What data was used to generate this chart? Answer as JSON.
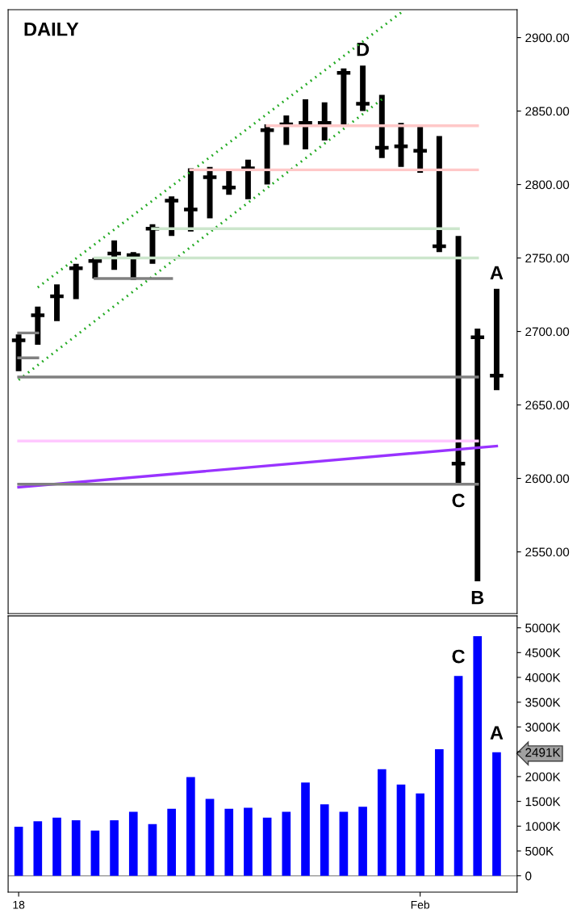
{
  "chart_data": [
    {
      "type": "candlestick",
      "categories": [
        null,
        null,
        null,
        null,
        null,
        null,
        null,
        null,
        null,
        null,
        null,
        null,
        null,
        null,
        null,
        null,
        null,
        null,
        null,
        null,
        null,
        null,
        null,
        null,
        null,
        null
      ],
      "color": "#000000",
      "ohlc": [
        [
          2694,
          2698,
          2673,
          2694
        ],
        [
          2711,
          2717,
          2691,
          2711
        ],
        [
          2724,
          2732,
          2707,
          2724
        ],
        [
          2743,
          2746,
          2722,
          2743
        ],
        [
          2748,
          2750,
          2736,
          2748
        ],
        [
          2753,
          2762,
          2742,
          2753
        ],
        [
          2752,
          2754,
          2735,
          2752
        ],
        [
          2770,
          2773,
          2746,
          2770
        ],
        [
          2789,
          2792,
          2765,
          2789
        ],
        [
          2783,
          2811,
          2768,
          2783
        ],
        [
          2805,
          2812,
          2777,
          2805
        ],
        [
          2798,
          2810,
          2793,
          2798
        ],
        [
          2811,
          2817,
          2790,
          2811
        ],
        [
          2837,
          2841,
          2800,
          2837
        ],
        [
          2841,
          2847,
          2827,
          2841
        ],
        [
          2842,
          2858,
          2824,
          2842
        ],
        [
          2842,
          2856,
          2830,
          2842
        ],
        [
          2876,
          2879,
          2841,
          2876
        ],
        [
          2855,
          2881,
          2850,
          2855
        ],
        [
          2825,
          2861,
          2818,
          2825
        ],
        [
          2826,
          2842,
          2812,
          2826
        ],
        [
          2823,
          2840,
          2808,
          2823
        ],
        [
          2758,
          2833,
          2754,
          2758
        ],
        [
          2610,
          2765,
          2596,
          2610
        ],
        [
          2696,
          2702,
          2530,
          2696
        ],
        [
          2670,
          2729,
          2660,
          2670
        ]
      ],
      "value_labels": [
        null,
        null,
        null,
        null,
        null,
        null,
        null,
        null,
        null,
        null,
        null,
        null,
        null,
        null,
        null,
        null,
        null,
        null,
        "D",
        null,
        null,
        null,
        null,
        "C",
        "B",
        "A"
      ],
      "series": [
        {
          "type": "line",
          "color": "#9933ff",
          "values": [
            2594,
            null,
            null,
            null,
            null,
            null,
            null,
            null,
            null,
            null,
            null,
            null,
            null,
            null,
            null,
            null,
            null,
            null,
            null,
            null,
            null,
            null,
            null,
            null,
            null,
            2622
          ]
        },
        {
          "type": "line",
          "color": "#22aa22",
          "line_style": "dotted",
          "values": [
            null,
            2730,
            null,
            null,
            null,
            null,
            null,
            null,
            null,
            null,
            null,
            null,
            null,
            null,
            null,
            null,
            null,
            null,
            null,
            null,
            2917,
            null,
            null,
            null,
            null,
            null
          ]
        },
        {
          "type": "line",
          "color": "#22aa22",
          "line_style": "dotted",
          "values": [
            2667,
            null,
            null,
            null,
            null,
            null,
            null,
            null,
            null,
            null,
            null,
            null,
            null,
            null,
            null,
            null,
            null,
            null,
            null,
            2858,
            null,
            null,
            null,
            null,
            null,
            null
          ]
        },
        {
          "type": "line",
          "color": "#808080",
          "values": [
            2699,
            2699,
            null,
            null,
            null,
            null,
            null,
            null,
            null,
            null,
            null,
            null,
            null,
            null,
            null,
            null,
            null,
            null,
            null,
            null,
            null,
            null,
            null,
            null,
            null,
            null
          ]
        },
        {
          "type": "line",
          "color": "#808080",
          "values": [
            2682,
            2682,
            null,
            null,
            null,
            null,
            null,
            null,
            null,
            null,
            null,
            null,
            null,
            null,
            null,
            null,
            null,
            null,
            null,
            null,
            null,
            null,
            null,
            null,
            null,
            null
          ]
        },
        {
          "type": "line",
          "color": "#808080",
          "values": [
            null,
            null,
            null,
            null,
            2736,
            null,
            null,
            null,
            2736,
            null,
            null,
            null,
            null,
            null,
            null,
            null,
            null,
            null,
            null,
            null,
            null,
            null,
            null,
            null,
            null,
            null
          ]
        },
        {
          "type": "line",
          "color": "#808080",
          "values": [
            2669,
            null,
            null,
            null,
            null,
            null,
            null,
            null,
            null,
            null,
            null,
            null,
            null,
            null,
            null,
            null,
            null,
            null,
            null,
            null,
            null,
            null,
            null,
            null,
            2669,
            null
          ]
        },
        {
          "type": "line",
          "color": "#808080",
          "values": [
            2596,
            null,
            null,
            null,
            null,
            null,
            null,
            null,
            null,
            null,
            null,
            null,
            null,
            null,
            null,
            null,
            null,
            null,
            null,
            null,
            null,
            null,
            null,
            null,
            2596,
            null
          ]
        },
        {
          "type": "line",
          "color": "#ffc8c8",
          "values": [
            null,
            null,
            null,
            null,
            null,
            null,
            null,
            null,
            null,
            null,
            null,
            null,
            null,
            2840,
            null,
            null,
            null,
            null,
            null,
            null,
            null,
            null,
            null,
            null,
            2840,
            null
          ]
        },
        {
          "type": "line",
          "color": "#ffc8c8",
          "values": [
            null,
            null,
            null,
            null,
            null,
            null,
            null,
            null,
            null,
            2810,
            null,
            null,
            null,
            null,
            null,
            null,
            null,
            null,
            null,
            null,
            null,
            null,
            null,
            null,
            2810,
            null
          ]
        },
        {
          "type": "line",
          "color": "#cce6cc",
          "values": [
            null,
            null,
            null,
            null,
            null,
            null,
            null,
            2770,
            null,
            null,
            null,
            null,
            null,
            null,
            null,
            null,
            null,
            null,
            null,
            null,
            null,
            null,
            null,
            2770,
            null,
            null
          ]
        },
        {
          "type": "line",
          "color": "#cce6cc",
          "values": [
            null,
            null,
            null,
            null,
            2750,
            null,
            null,
            null,
            null,
            null,
            null,
            null,
            null,
            null,
            null,
            null,
            null,
            null,
            null,
            null,
            null,
            null,
            null,
            null,
            2750,
            null
          ]
        },
        {
          "type": "line",
          "color": "#ffc8ff",
          "values": [
            2625.5,
            null,
            null,
            null,
            null,
            null,
            null,
            null,
            null,
            null,
            null,
            null,
            null,
            null,
            null,
            null,
            null,
            null,
            null,
            null,
            null,
            null,
            null,
            null,
            2625.5,
            null
          ]
        }
      ],
      "ylim": [
        2508,
        2919
      ],
      "yticks": [
        {
          "value": 2550,
          "label": "2550.00"
        },
        {
          "value": 2600,
          "label": "2600.00"
        },
        {
          "value": 2650,
          "label": "2650.00"
        },
        {
          "value": 2700,
          "label": "2700.00"
        },
        {
          "value": 2750,
          "label": "2750.00"
        },
        {
          "value": 2800,
          "label": "2800.00"
        },
        {
          "value": 2850,
          "label": "2850.00"
        },
        {
          "value": 2900,
          "label": "2900.00"
        }
      ],
      "tick_labels": "y",
      "annotations": [
        "DAILY"
      ]
    },
    {
      "type": "bar",
      "categories": [
        "18",
        null,
        null,
        null,
        null,
        null,
        null,
        null,
        null,
        null,
        null,
        null,
        null,
        null,
        null,
        null,
        null,
        null,
        null,
        null,
        null,
        "Feb",
        null,
        null,
        null,
        null
      ],
      "color": "#0000ff",
      "values": [
        990,
        1100,
        1170,
        1120,
        910,
        1120,
        1290,
        1040,
        1350,
        1990,
        1550,
        1350,
        1370,
        1170,
        1290,
        1880,
        1440,
        1290,
        1390,
        2150,
        1840,
        1660,
        2550,
        4030,
        4830,
        2491
      ],
      "value_labels": [
        null,
        null,
        null,
        null,
        null,
        null,
        null,
        null,
        null,
        null,
        null,
        null,
        null,
        null,
        null,
        null,
        null,
        null,
        null,
        null,
        null,
        null,
        null,
        "C",
        null,
        "A"
      ],
      "ylim": [
        -330,
        5240
      ],
      "yticks": [
        0,
        {
          "value": 500,
          "label": "500K"
        },
        {
          "value": 1000,
          "label": "1000K"
        },
        {
          "value": 1500,
          "label": "1500K"
        },
        {
          "value": 2000,
          "label": "2000K"
        },
        {
          "value": 2491,
          "label": "2491K"
        },
        {
          "value": 2500,
          "label": null
        },
        {
          "value": 3000,
          "label": "3000K"
        },
        {
          "value": 3500,
          "label": "3500K"
        },
        {
          "value": 4000,
          "label": "4000K"
        },
        {
          "value": 4500,
          "label": "4500K"
        },
        {
          "value": 5000,
          "label": "5000K"
        }
      ],
      "ref_lines": [
        {
          "axis": "y",
          "value": 0,
          "color": "#a0a0a0"
        }
      ]
    }
  ]
}
